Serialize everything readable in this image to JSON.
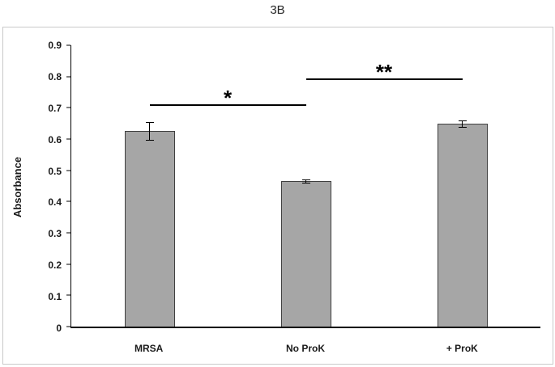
{
  "title": "3B",
  "chart_data": {
    "type": "bar",
    "title": "3B",
    "xlabel": "",
    "ylabel": "Absorbance",
    "ylim": [
      0,
      0.9
    ],
    "grid": false,
    "legend": false,
    "categories": [
      "MRSA",
      "No ProK",
      "+ ProK"
    ],
    "values": [
      0.625,
      0.465,
      0.648
    ],
    "errors": [
      0.03,
      0.006,
      0.012
    ],
    "yticks": [
      {
        "value": 0,
        "label": "0"
      },
      {
        "value": 0.1,
        "label": "0.1"
      },
      {
        "value": 0.2,
        "label": "0.2"
      },
      {
        "value": 0.3,
        "label": "0.3"
      },
      {
        "value": 0.4,
        "label": "0.4"
      },
      {
        "value": 0.5,
        "label": "0.5"
      },
      {
        "value": 0.6,
        "label": "0.6"
      },
      {
        "value": 0.7,
        "label": "0.7"
      },
      {
        "value": 0.8,
        "label": "0.8"
      },
      {
        "value": 0.9,
        "label": "0.9"
      }
    ],
    "bar_color": "#a6a6a6",
    "bar_border": "#3f3f3f",
    "annotations": [
      {
        "label": "*",
        "from_index": 0,
        "to_index": 1,
        "y": 0.705
      },
      {
        "label": "**",
        "from_index": 1,
        "to_index": 2,
        "y": 0.79
      }
    ]
  }
}
